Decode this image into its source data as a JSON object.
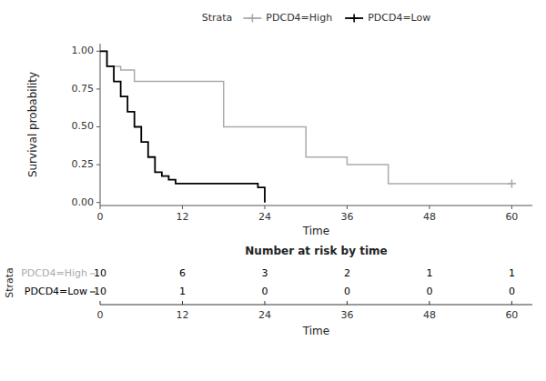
{
  "chart_data": [
    {
      "type": "step",
      "xlabel": "Time",
      "ylabel": "Survival probability",
      "legend_title": "Strata",
      "series": [
        {
          "name": "PDCD4=High",
          "color": "#aaaaaa",
          "marker": "plus",
          "x": [
            0,
            1,
            2,
            3,
            4,
            5,
            6,
            7,
            8,
            9,
            10,
            11,
            12,
            18,
            24,
            30,
            36,
            42,
            60
          ],
          "values": [
            1.0,
            0.9,
            0.9,
            0.875,
            0.875,
            0.8,
            0.8,
            0.8,
            0.8,
            0.8,
            0.8,
            0.8,
            0.8,
            0.5,
            0.5,
            0.3,
            0.25,
            0.125,
            0.125
          ],
          "censored_x": [
            60
          ]
        },
        {
          "name": "PDCD4=Low",
          "color": "#000000",
          "marker": "plus",
          "x": [
            0,
            1,
            2,
            3,
            4,
            5,
            6,
            7,
            8,
            9,
            10,
            11,
            23,
            24
          ],
          "values": [
            1.0,
            0.9,
            0.8,
            0.7,
            0.6,
            0.5,
            0.4,
            0.3,
            0.2,
            0.175,
            0.15,
            0.125,
            0.1,
            0.0
          ]
        }
      ],
      "xlim": [
        0,
        63
      ],
      "ylim": [
        -0.02,
        1.05
      ],
      "xticks": [
        0,
        12,
        24,
        36,
        48,
        60
      ],
      "yticks": [
        {
          "value": 0.0,
          "label": "0.00"
        },
        {
          "value": 0.25,
          "label": "0.25"
        },
        {
          "value": 0.5,
          "label": "0.50"
        },
        {
          "value": 0.75,
          "label": "0.75"
        },
        {
          "value": 1.0,
          "label": "1.00"
        }
      ]
    },
    {
      "type": "table",
      "title": "Number at risk by time",
      "xlabel": "Time",
      "ylabel": "Strata",
      "x": [
        0,
        12,
        24,
        36,
        48,
        60
      ],
      "xlim": [
        0,
        63
      ],
      "series": [
        {
          "name": "PDCD4=High",
          "color": "#aaaaaa",
          "values": [
            10,
            6,
            3,
            2,
            1,
            1
          ]
        },
        {
          "name": "PDCD4=Low",
          "color": "#000000",
          "values": [
            10,
            1,
            0,
            0,
            0,
            0
          ]
        }
      ]
    }
  ]
}
